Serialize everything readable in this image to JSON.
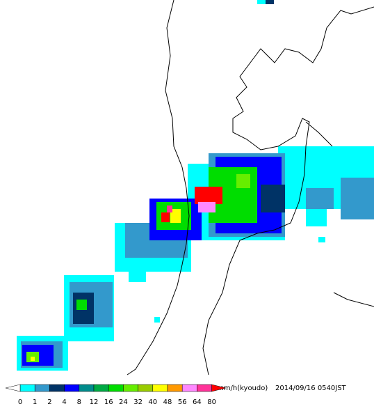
{
  "legend": {
    "unit": "mm/h(kyoudo)",
    "timestamp": "2014/09/16 0540JST",
    "below_color": "#ffffff",
    "above_color": "#ff0000",
    "ticks": [
      "0",
      "1",
      "2",
      "4",
      "8",
      "12",
      "16",
      "24",
      "32",
      "40",
      "48",
      "56",
      "64",
      "80"
    ],
    "colors": [
      "#00ffff",
      "#3399cc",
      "#003366",
      "#0000ff",
      "#008c8c",
      "#00aa44",
      "#00dd00",
      "#66ee00",
      "#99cc00",
      "#ffff00",
      "#ff9900",
      "#ff88ff",
      "#ff3399"
    ]
  }
}
